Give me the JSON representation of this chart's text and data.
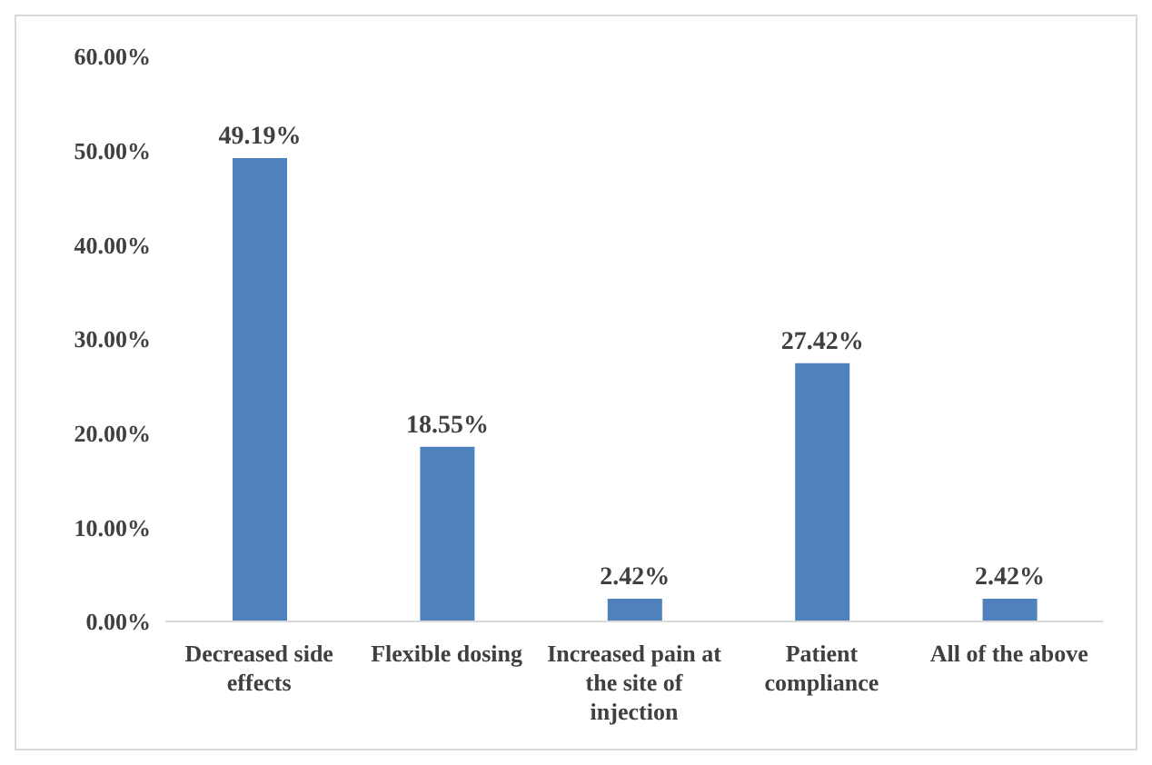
{
  "chart_data": {
    "type": "bar",
    "categories": [
      "Decreased side effects",
      "Flexible dosing",
      "Increased pain at the site of injection",
      "Patient compliance",
      "All of the above"
    ],
    "values": [
      49.19,
      18.55,
      2.42,
      27.42,
      2.42
    ],
    "value_labels": [
      "49.19%",
      "18.55%",
      "2.42%",
      "27.42%",
      "2.42%"
    ],
    "color": "#4f81bd",
    "ylim": [
      0,
      60
    ],
    "yticks": [
      {
        "value": 0,
        "label": "0.00%"
      },
      {
        "value": 10,
        "label": "10.00%"
      },
      {
        "value": 20,
        "label": "20.00%"
      },
      {
        "value": 30,
        "label": "30.00%"
      },
      {
        "value": 40,
        "label": "40.00%"
      },
      {
        "value": 50,
        "label": "50.00%"
      },
      {
        "value": 60,
        "label": "60.00%"
      }
    ]
  }
}
